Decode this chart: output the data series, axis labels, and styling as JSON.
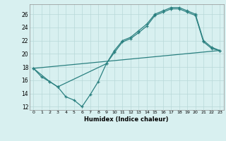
{
  "title": "",
  "xlabel": "Humidex (Indice chaleur)",
  "bg_color": "#d8f0f0",
  "grid_color": "#b8d8d8",
  "line_color": "#2a8080",
  "xlim": [
    -0.5,
    23.5
  ],
  "ylim": [
    11.5,
    27.5
  ],
  "xticks": [
    0,
    1,
    2,
    3,
    4,
    5,
    6,
    7,
    8,
    9,
    10,
    11,
    12,
    13,
    14,
    15,
    16,
    17,
    18,
    19,
    20,
    21,
    22,
    23
  ],
  "yticks": [
    12,
    14,
    16,
    18,
    20,
    22,
    24,
    26
  ],
  "line1_x": [
    0,
    1,
    2,
    3,
    4,
    5,
    6,
    7,
    8,
    9,
    10,
    11,
    12,
    13,
    14,
    15,
    16,
    17,
    18,
    19,
    20,
    21,
    22,
    23
  ],
  "line1_y": [
    17.8,
    16.5,
    15.8,
    15.0,
    13.5,
    13.0,
    12.0,
    13.8,
    15.8,
    18.5,
    20.5,
    22.0,
    22.5,
    23.5,
    24.5,
    26.0,
    26.5,
    27.0,
    27.0,
    26.5,
    26.0,
    22.0,
    21.0,
    20.5
  ],
  "line2_x": [
    0,
    2,
    3,
    9,
    10,
    11,
    12,
    13,
    14,
    15,
    16,
    17,
    18,
    19,
    20,
    21,
    22,
    23
  ],
  "line2_y": [
    17.8,
    15.8,
    15.0,
    18.5,
    20.2,
    21.8,
    22.3,
    23.2,
    24.2,
    25.8,
    26.3,
    26.8,
    26.8,
    26.3,
    25.8,
    21.8,
    20.8,
    20.5
  ],
  "line3_x": [
    0,
    23
  ],
  "line3_y": [
    17.8,
    20.5
  ]
}
